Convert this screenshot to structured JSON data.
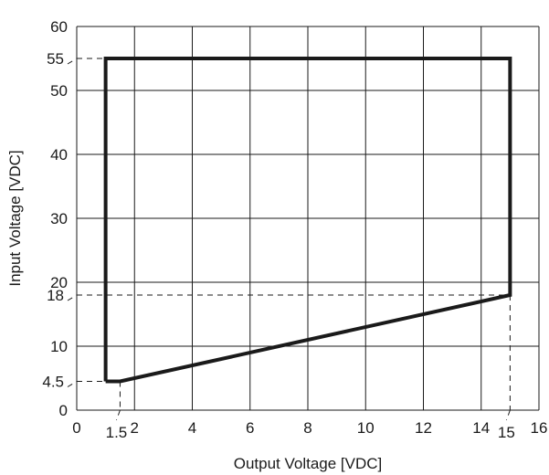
{
  "chart_data": {
    "type": "line",
    "xlabel": "Output Voltage [VDC]",
    "ylabel": "Input Voltage [VDC]",
    "xlim": [
      0,
      16
    ],
    "ylim": [
      0,
      60
    ],
    "grid": true,
    "x_gridlines": [
      0,
      2,
      4,
      6,
      8,
      10,
      12,
      14,
      16
    ],
    "y_gridlines": [
      0,
      10,
      20,
      30,
      40,
      50,
      60
    ],
    "x_ticks": [
      {
        "value": 0,
        "label": "0"
      },
      {
        "value": 2,
        "label": "2"
      },
      {
        "value": 4,
        "label": "4"
      },
      {
        "value": 6,
        "label": "6"
      },
      {
        "value": 8,
        "label": "8"
      },
      {
        "value": 10,
        "label": "10"
      },
      {
        "value": 12,
        "label": "12"
      },
      {
        "value": 14,
        "label": "14"
      },
      {
        "value": 16,
        "label": "16"
      }
    ],
    "y_ticks": [
      {
        "value": 0,
        "label": "0"
      },
      {
        "value": 10,
        "label": "10"
      },
      {
        "value": 20,
        "label": "20"
      },
      {
        "value": 30,
        "label": "30"
      },
      {
        "value": 40,
        "label": "40"
      },
      {
        "value": 50,
        "label": "50"
      },
      {
        "value": 60,
        "label": "60"
      }
    ],
    "x_annotations": [
      {
        "value": 1.5,
        "label": "1.5",
        "guide_to_y": 4.5
      },
      {
        "value": 15,
        "label": "15",
        "guide_to_y": 18
      }
    ],
    "y_annotations": [
      {
        "value": 4.5,
        "label": "4.5",
        "guide_to_x": 1
      },
      {
        "value": 18,
        "label": "18",
        "guide_to_x": 15
      },
      {
        "value": 55,
        "label": "55",
        "guide_to_x": 1
      }
    ],
    "series": [
      {
        "x": [
          1,
          1,
          15,
          15,
          1.5,
          1
        ],
        "y": [
          4.5,
          55,
          55,
          18,
          4.5,
          4.5
        ],
        "color": "#1a1a1a"
      }
    ]
  }
}
